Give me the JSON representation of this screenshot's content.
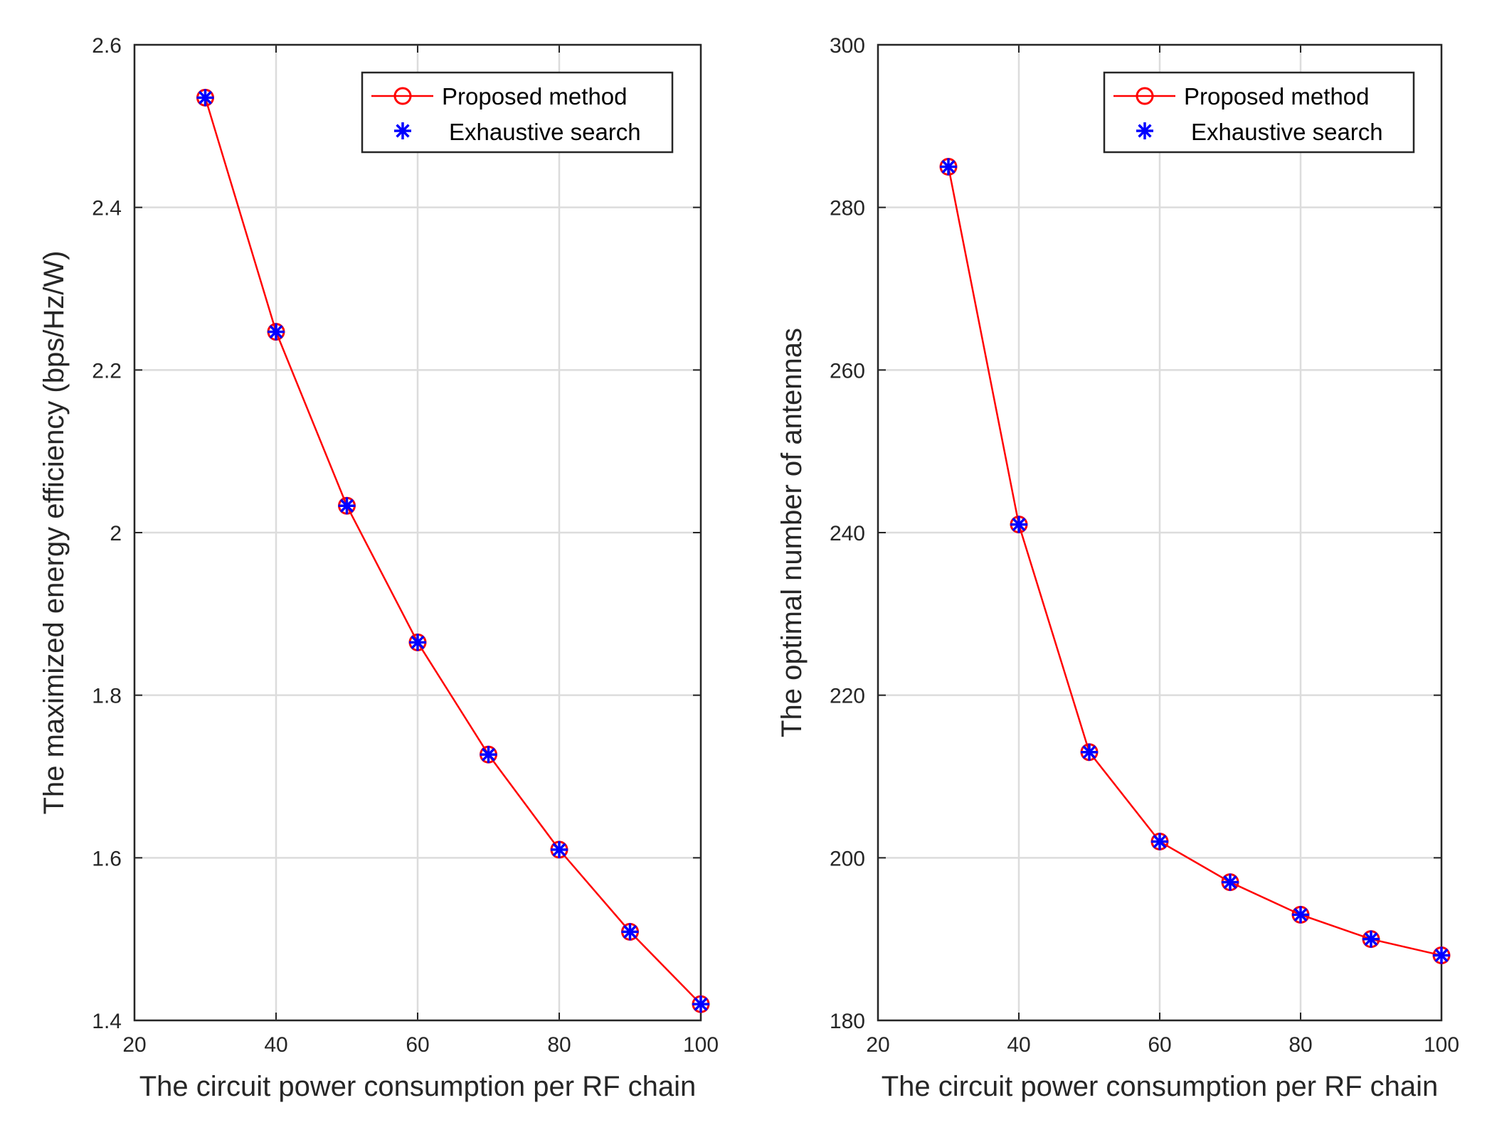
{
  "chart_data": [
    {
      "type": "line",
      "xlabel": "The circuit power consumption per RF chain",
      "ylabel": "The maximized energy efficiency (bps/Hz/W)",
      "xlim": [
        20,
        100
      ],
      "ylim": [
        1.4,
        2.6
      ],
      "xticks": [
        "20",
        "40",
        "60",
        "80",
        "100"
      ],
      "yticks": [
        "1.4",
        "1.6",
        "1.8",
        "2",
        "2.2",
        "2.4",
        "2.6"
      ],
      "grid": true,
      "legend_position": "top-right",
      "x": [
        30,
        40,
        50,
        60,
        70,
        80,
        90,
        100
      ],
      "series": [
        {
          "name": "Proposed method",
          "color": "#ff0000",
          "marker": "circle",
          "line": true,
          "values": [
            2.535,
            2.247,
            2.033,
            1.865,
            1.727,
            1.61,
            1.509,
            1.42
          ]
        },
        {
          "name": "Exhaustive search",
          "color": "#0000ff",
          "marker": "asterisk",
          "line": false,
          "values": [
            2.535,
            2.247,
            2.033,
            1.865,
            1.727,
            1.61,
            1.509,
            1.42
          ]
        }
      ]
    },
    {
      "type": "line",
      "xlabel": "The circuit power consumption per RF chain",
      "ylabel": "The optimal number of antennas",
      "xlim": [
        20,
        100
      ],
      "ylim": [
        180,
        300
      ],
      "xticks": [
        "20",
        "40",
        "60",
        "80",
        "100"
      ],
      "yticks": [
        "180",
        "200",
        "220",
        "240",
        "260",
        "280",
        "300"
      ],
      "grid": true,
      "legend_position": "top-right",
      "x": [
        30,
        40,
        50,
        60,
        70,
        80,
        90,
        100
      ],
      "series": [
        {
          "name": "Proposed method",
          "color": "#ff0000",
          "marker": "circle",
          "line": true,
          "values": [
            285,
            241,
            213,
            202,
            197,
            193,
            190,
            188
          ]
        },
        {
          "name": "Exhaustive search",
          "color": "#0000ff",
          "marker": "asterisk",
          "line": false,
          "values": [
            285,
            241,
            213,
            202,
            197,
            193,
            190,
            188
          ]
        }
      ]
    }
  ]
}
